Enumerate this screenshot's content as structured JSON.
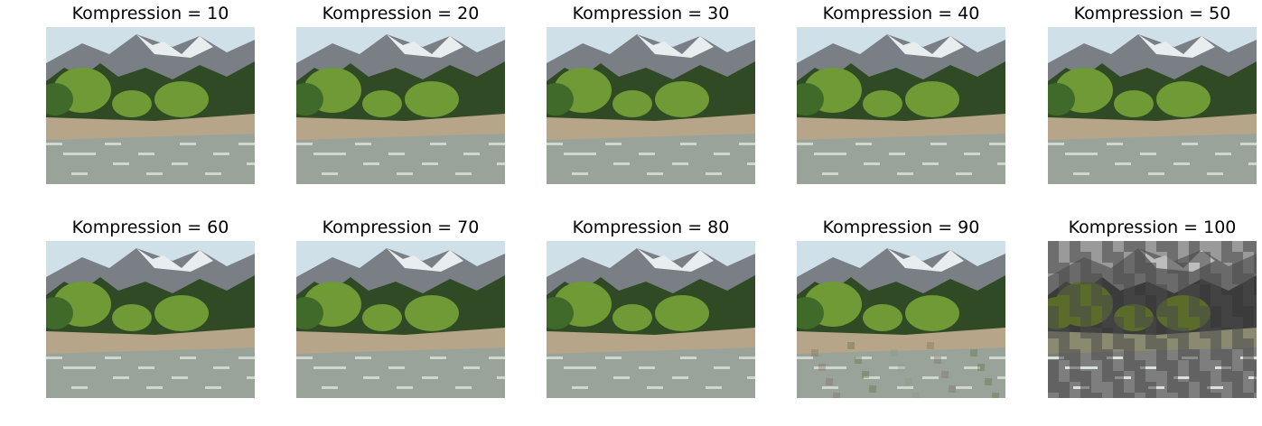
{
  "panels": [
    {
      "title": "Kompression = 10",
      "quality": 10
    },
    {
      "title": "Kompression = 20",
      "quality": 20
    },
    {
      "title": "Kompression = 30",
      "quality": 30
    },
    {
      "title": "Kompression = 40",
      "quality": 40
    },
    {
      "title": "Kompression = 50",
      "quality": 50
    },
    {
      "title": "Kompression = 60",
      "quality": 60
    },
    {
      "title": "Kompression = 70",
      "quality": 70
    },
    {
      "title": "Kompression = 80",
      "quality": 80
    },
    {
      "title": "Kompression = 90",
      "quality": 90
    },
    {
      "title": "Kompression = 100",
      "quality": 100
    }
  ],
  "image": {
    "subject": "mountain-stream-landscape",
    "colors": {
      "sky": "#cfe0e8",
      "snow": "#e8eef0",
      "mountain": "#7a7f86",
      "forest": "#2f4a25",
      "bush": "#6f9a35",
      "gravel": "#b7a58a",
      "water": "#9aa39a",
      "foam": "#e6ece6"
    }
  }
}
